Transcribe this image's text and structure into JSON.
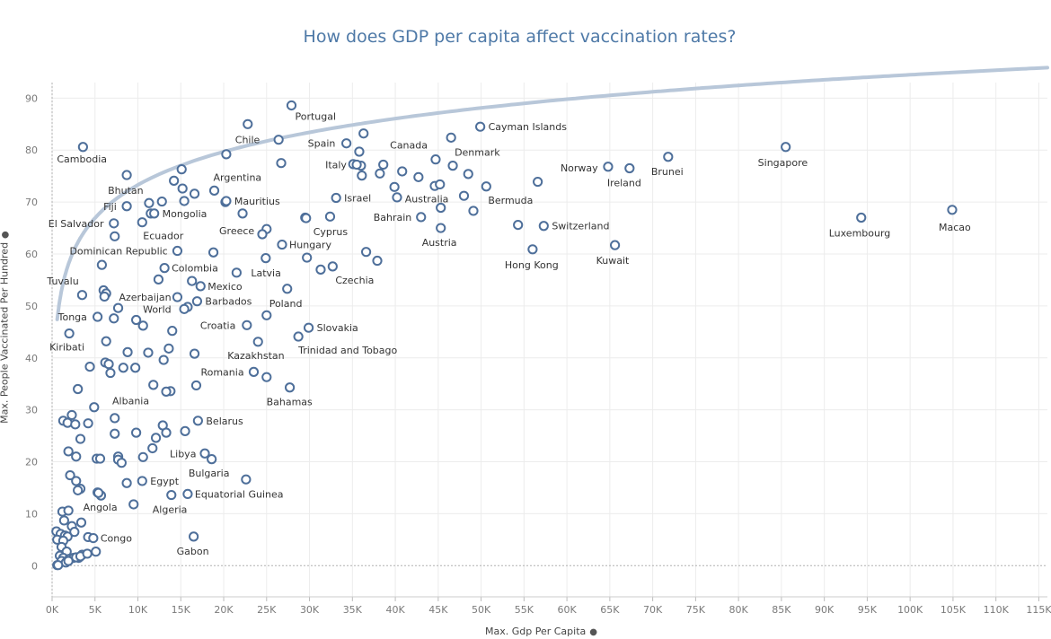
{
  "chart_data": {
    "type": "scatter",
    "title": "How does GDP per capita affect vaccination rates?",
    "xlabel": "Max. Gdp Per Capita",
    "ylabel": "Max. People Vaccinated Per Hundred",
    "pin_icon": "pin-icon",
    "xlim": [
      0,
      116000
    ],
    "ylim": [
      -6,
      93
    ],
    "x_ticks": [
      0,
      5000,
      10000,
      15000,
      20000,
      25000,
      30000,
      35000,
      40000,
      45000,
      50000,
      55000,
      60000,
      65000,
      70000,
      75000,
      80000,
      85000,
      90000,
      95000,
      100000,
      105000,
      110000,
      115000
    ],
    "x_tick_labels": [
      "0K",
      "5K",
      "10K",
      "15K",
      "20K",
      "25K",
      "30K",
      "35K",
      "40K",
      "45K",
      "50K",
      "55K",
      "60K",
      "65K",
      "70K",
      "75K",
      "80K",
      "85K",
      "90K",
      "95K",
      "100K",
      "105K",
      "110K",
      "115K"
    ],
    "y_ticks": [
      0,
      10,
      20,
      30,
      40,
      50,
      60,
      70,
      80,
      90
    ],
    "y_tick_labels": [
      "0",
      "10",
      "20",
      "30",
      "40",
      "50",
      "60",
      "70",
      "80",
      "90"
    ],
    "grid": true,
    "marker_color": "#4e6f9a",
    "trend_color": "#b8c7d9",
    "trend": {
      "type": "logarithmic",
      "a": -11.5,
      "b": 21.2
    },
    "labeled_points": [
      {
        "label": "Portugal",
        "x": 27900,
        "y": 88.6,
        "dx": 4,
        "dy": 16,
        "anchor": "start"
      },
      {
        "label": "Chile",
        "x": 22800,
        "y": 85.0,
        "dx": -14,
        "dy": 21,
        "anchor": "start"
      },
      {
        "label": "Cayman Islands",
        "x": 49900,
        "y": 84.5,
        "dx": 9,
        "dy": 4,
        "anchor": "start"
      },
      {
        "label": "Cambodia",
        "x": 3600,
        "y": 80.6,
        "dx": -29,
        "dy": 17,
        "anchor": "start"
      },
      {
        "label": "Spain",
        "x": 34300,
        "y": 81.3,
        "dx": -43,
        "dy": 4,
        "anchor": "start"
      },
      {
        "label": "Canada",
        "x": 46500,
        "y": 82.4,
        "dx": -68,
        "dy": 12,
        "anchor": "start"
      },
      {
        "label": "Denmark",
        "x": 46700,
        "y": 77.0,
        "dx": 2,
        "dy": -11,
        "anchor": "start"
      },
      {
        "label": "Italy",
        "x": 35500,
        "y": 77.2,
        "dx": -35,
        "dy": 4,
        "anchor": "start"
      },
      {
        "label": "Norway",
        "x": 64800,
        "y": 76.8,
        "dx": -53,
        "dy": 5,
        "anchor": "start"
      },
      {
        "label": "Brunei",
        "x": 71800,
        "y": 78.7,
        "dx": -19,
        "dy": 20,
        "anchor": "start"
      },
      {
        "label": "Singapore",
        "x": 85500,
        "y": 80.6,
        "dx": -31,
        "dy": 21,
        "anchor": "start"
      },
      {
        "label": "Ireland",
        "x": 67300,
        "y": 76.5,
        "dx": -25,
        "dy": 20,
        "anchor": "start"
      },
      {
        "label": "Bhutan",
        "x": 8700,
        "y": 75.2,
        "dx": -21,
        "dy": 21,
        "anchor": "start"
      },
      {
        "label": "Argentina",
        "x": 18900,
        "y": 72.2,
        "dx": -1,
        "dy": -11,
        "anchor": "start"
      },
      {
        "label": "Fiji",
        "x": 8700,
        "y": 69.2,
        "dx": -26,
        "dy": 4,
        "anchor": "start"
      },
      {
        "label": "Mauritius",
        "x": 20300,
        "y": 70.2,
        "dx": 9,
        "dy": 4,
        "anchor": "start"
      },
      {
        "label": "Israel",
        "x": 33100,
        "y": 70.8,
        "dx": 9,
        "dy": 4,
        "anchor": "start"
      },
      {
        "label": "Australia",
        "x": 45200,
        "y": 73.4,
        "dx": -39,
        "dy": 20,
        "anchor": "start"
      },
      {
        "label": "Bermuda",
        "x": 50600,
        "y": 73.0,
        "dx": 2,
        "dy": 19,
        "anchor": "start"
      },
      {
        "label": "Mongolia",
        "x": 11900,
        "y": 67.8,
        "dx": 9,
        "dy": 4,
        "anchor": "start"
      },
      {
        "label": "El Salvador",
        "x": 7200,
        "y": 65.9,
        "dx": -73,
        "dy": 4,
        "anchor": "start"
      },
      {
        "label": "Ecuador",
        "x": 10500,
        "y": 66.1,
        "dx": 1,
        "dy": 19,
        "anchor": "start"
      },
      {
        "label": "Greece",
        "x": 24500,
        "y": 63.8,
        "dx": -48,
        "dy": 0,
        "anchor": "start"
      },
      {
        "label": "Cyprus",
        "x": 29600,
        "y": 66.9,
        "dx": 8,
        "dy": 19,
        "anchor": "start"
      },
      {
        "label": "Bahrain",
        "x": 43000,
        "y": 67.1,
        "dx": -53,
        "dy": 4,
        "anchor": "start"
      },
      {
        "label": "Switzerland",
        "x": 57300,
        "y": 65.4,
        "dx": 9,
        "dy": 4,
        "anchor": "start"
      },
      {
        "label": "Austria",
        "x": 45300,
        "y": 65.0,
        "dx": -21,
        "dy": 20,
        "anchor": "start"
      },
      {
        "label": "Luxembourg",
        "x": 94300,
        "y": 67.0,
        "dx": -36,
        "dy": 21,
        "anchor": "start"
      },
      {
        "label": "Macao",
        "x": 104900,
        "y": 68.5,
        "dx": -15,
        "dy": 23,
        "anchor": "start"
      },
      {
        "label": "Dominican Republic",
        "x": 14600,
        "y": 60.6,
        "dx": -120,
        "dy": 4,
        "anchor": "start"
      },
      {
        "label": "Hungary",
        "x": 26800,
        "y": 61.8,
        "dx": 8,
        "dy": 4,
        "anchor": "start"
      },
      {
        "label": "Hong Kong",
        "x": 56000,
        "y": 60.9,
        "dx": -31,
        "dy": 21,
        "anchor": "start"
      },
      {
        "label": "Kuwait",
        "x": 65600,
        "y": 61.7,
        "dx": -21,
        "dy": 21,
        "anchor": "start"
      },
      {
        "label": "Colombia",
        "x": 13100,
        "y": 57.3,
        "dx": 8,
        "dy": 4,
        "anchor": "start"
      },
      {
        "label": "Latvia",
        "x": 21500,
        "y": 56.4,
        "dx": 16,
        "dy": 4,
        "anchor": "start"
      },
      {
        "label": "Czechia",
        "x": 32700,
        "y": 57.6,
        "dx": 3,
        "dy": 19,
        "anchor": "start"
      },
      {
        "label": "Tuvalu",
        "x": 5800,
        "y": 57.9,
        "dx": -61,
        "dy": 22,
        "anchor": "start"
      },
      {
        "label": "Mexico",
        "x": 17300,
        "y": 53.8,
        "dx": 8,
        "dy": 4,
        "anchor": "start"
      },
      {
        "label": "Azerbaijan",
        "x": 14600,
        "y": 51.7,
        "dx": -65,
        "dy": 4,
        "anchor": "start"
      },
      {
        "label": "Barbados",
        "x": 16900,
        "y": 50.9,
        "dx": 9,
        "dy": 4,
        "anchor": "start"
      },
      {
        "label": "Poland",
        "x": 27400,
        "y": 53.3,
        "dx": -20,
        "dy": 20,
        "anchor": "start"
      },
      {
        "label": "World",
        "x": 15400,
        "y": 49.4,
        "dx": -46,
        "dy": 4,
        "anchor": "start"
      },
      {
        "label": "Tonga",
        "x": 5300,
        "y": 47.9,
        "dx": -44,
        "dy": 4,
        "anchor": "start"
      },
      {
        "label": "Croatia",
        "x": 22700,
        "y": 46.3,
        "dx": -52,
        "dy": 4,
        "anchor": "start"
      },
      {
        "label": "Slovakia",
        "x": 29900,
        "y": 45.8,
        "dx": 9,
        "dy": 4,
        "anchor": "start"
      },
      {
        "label": "Trinidad and Tobago",
        "x": 28700,
        "y": 44.1,
        "dx": 0,
        "dy": 19,
        "anchor": "start"
      },
      {
        "label": "Kiribati",
        "x": 2000,
        "y": 44.7,
        "dx": -22,
        "dy": 19,
        "anchor": "start"
      },
      {
        "label": "Kazakhstan",
        "x": 24000,
        "y": 43.1,
        "dx": -34,
        "dy": 19,
        "anchor": "start"
      },
      {
        "label": "Romania",
        "x": 23500,
        "y": 37.3,
        "dx": -59,
        "dy": 4,
        "anchor": "start"
      },
      {
        "label": "Bahamas",
        "x": 27700,
        "y": 34.3,
        "dx": -26,
        "dy": 20,
        "anchor": "start"
      },
      {
        "label": "Albania",
        "x": 13300,
        "y": 33.5,
        "dx": -60,
        "dy": 14,
        "anchor": "start"
      },
      {
        "label": "Belarus",
        "x": 17000,
        "y": 27.9,
        "dx": 9,
        "dy": 4,
        "anchor": "start"
      },
      {
        "label": "Libya",
        "x": 17800,
        "y": 21.6,
        "dx": -39,
        "dy": 4,
        "anchor": "start"
      },
      {
        "label": "Bulgaria",
        "x": 22600,
        "y": 16.6,
        "dx": -64,
        "dy": -3,
        "anchor": "start"
      },
      {
        "label": "Egypt",
        "x": 10500,
        "y": 16.3,
        "dx": 9,
        "dy": 4,
        "anchor": "start"
      },
      {
        "label": "Equatorial Guinea",
        "x": 15800,
        "y": 13.8,
        "dx": 8,
        "dy": 4,
        "anchor": "start"
      },
      {
        "label": "Angola",
        "x": 5400,
        "y": 14.0,
        "dx": -17,
        "dy": 20,
        "anchor": "start"
      },
      {
        "label": "Algeria",
        "x": 13900,
        "y": 13.6,
        "dx": -21,
        "dy": 20,
        "anchor": "start"
      },
      {
        "label": "Congo",
        "x": 4800,
        "y": 5.3,
        "dx": 8,
        "dy": 4,
        "anchor": "start"
      },
      {
        "label": "Gabon",
        "x": 16500,
        "y": 5.6,
        "dx": -19,
        "dy": 20,
        "anchor": "start"
      }
    ],
    "unlabeled_points": [
      [
        26400,
        82.0
      ],
      [
        36300,
        83.2
      ],
      [
        20300,
        79.2
      ],
      [
        35800,
        79.7
      ],
      [
        26700,
        77.5
      ],
      [
        44700,
        78.2
      ],
      [
        35100,
        77.3
      ],
      [
        36000,
        77.0
      ],
      [
        38600,
        77.2
      ],
      [
        40800,
        75.9
      ],
      [
        15100,
        76.3
      ],
      [
        38200,
        75.5
      ],
      [
        42700,
        74.8
      ],
      [
        48500,
        75.4
      ],
      [
        36100,
        75.1
      ],
      [
        14200,
        74.1
      ],
      [
        56600,
        73.9
      ],
      [
        15200,
        72.6
      ],
      [
        16600,
        71.6
      ],
      [
        39900,
        72.9
      ],
      [
        44600,
        73.1
      ],
      [
        48000,
        71.2
      ],
      [
        40200,
        70.9
      ],
      [
        11300,
        69.8
      ],
      [
        12800,
        70.1
      ],
      [
        15400,
        70.2
      ],
      [
        20200,
        70.0
      ],
      [
        45300,
        68.9
      ],
      [
        49100,
        68.3
      ],
      [
        11500,
        67.8
      ],
      [
        22200,
        67.8
      ],
      [
        29500,
        67.0
      ],
      [
        32400,
        67.2
      ],
      [
        54300,
        65.6
      ],
      [
        25000,
        64.8
      ],
      [
        7300,
        63.4
      ],
      [
        18800,
        60.3
      ],
      [
        36600,
        60.4
      ],
      [
        37900,
        58.7
      ],
      [
        24900,
        59.2
      ],
      [
        29700,
        59.3
      ],
      [
        31300,
        57.0
      ],
      [
        12400,
        55.1
      ],
      [
        16300,
        54.8
      ],
      [
        6000,
        53.0
      ],
      [
        6300,
        52.4
      ],
      [
        6100,
        51.8
      ],
      [
        3500,
        52.1
      ],
      [
        7700,
        49.6
      ],
      [
        15800,
        49.8
      ],
      [
        25000,
        48.2
      ],
      [
        7200,
        47.6
      ],
      [
        9800,
        47.3
      ],
      [
        10600,
        46.2
      ],
      [
        14000,
        45.2
      ],
      [
        6300,
        43.2
      ],
      [
        13600,
        41.8
      ],
      [
        8800,
        41.1
      ],
      [
        11200,
        41.0
      ],
      [
        16600,
        40.8
      ],
      [
        13000,
        39.6
      ],
      [
        4400,
        38.3
      ],
      [
        6200,
        39.1
      ],
      [
        6600,
        38.8
      ],
      [
        8300,
        38.1
      ],
      [
        9700,
        38.1
      ],
      [
        6800,
        37.1
      ],
      [
        25000,
        36.3
      ],
      [
        11800,
        34.8
      ],
      [
        3000,
        34.0
      ],
      [
        16800,
        34.7
      ],
      [
        13800,
        33.6
      ],
      [
        4900,
        30.5
      ],
      [
        2300,
        29.0
      ],
      [
        7300,
        28.4
      ],
      [
        1300,
        27.9
      ],
      [
        1800,
        27.5
      ],
      [
        2700,
        27.2
      ],
      [
        4200,
        27.4
      ],
      [
        12900,
        27.0
      ],
      [
        7300,
        25.4
      ],
      [
        9800,
        25.6
      ],
      [
        13300,
        25.6
      ],
      [
        15500,
        25.9
      ],
      [
        3300,
        24.4
      ],
      [
        12100,
        24.6
      ],
      [
        11700,
        22.6
      ],
      [
        1900,
        22.0
      ],
      [
        2800,
        21.0
      ],
      [
        7700,
        21.0
      ],
      [
        10600,
        20.9
      ],
      [
        5200,
        20.6
      ],
      [
        5600,
        20.6
      ],
      [
        7700,
        20.4
      ],
      [
        8100,
        19.8
      ],
      [
        18600,
        20.5
      ],
      [
        2100,
        17.4
      ],
      [
        2800,
        16.3
      ],
      [
        8700,
        15.9
      ],
      [
        3300,
        14.8
      ],
      [
        3000,
        14.5
      ],
      [
        5300,
        14.1
      ],
      [
        5700,
        13.5
      ],
      [
        9500,
        11.8
      ],
      [
        1200,
        10.4
      ],
      [
        1900,
        10.6
      ],
      [
        1400,
        8.7
      ],
      [
        3400,
        8.3
      ],
      [
        2300,
        7.6
      ],
      [
        500,
        6.6
      ],
      [
        2600,
        6.5
      ],
      [
        1000,
        6.1
      ],
      [
        1500,
        5.8
      ],
      [
        1800,
        5.6
      ],
      [
        4200,
        5.5
      ],
      [
        600,
        5.0
      ],
      [
        1300,
        4.8
      ],
      [
        1100,
        3.6
      ],
      [
        3500,
        2.1
      ],
      [
        5100,
        2.7
      ],
      [
        3100,
        1.5
      ],
      [
        1700,
        2.7
      ],
      [
        900,
        1.9
      ],
      [
        1500,
        1.0
      ],
      [
        1300,
        1.5
      ],
      [
        2000,
        1.3
      ],
      [
        2500,
        1.5
      ],
      [
        2800,
        1.6
      ],
      [
        3300,
        1.8
      ],
      [
        4100,
        2.3
      ],
      [
        1100,
        0.9
      ],
      [
        600,
        0.1
      ],
      [
        1600,
        0.6
      ],
      [
        1900,
        0.9
      ],
      [
        700,
        0.1
      ]
    ]
  }
}
